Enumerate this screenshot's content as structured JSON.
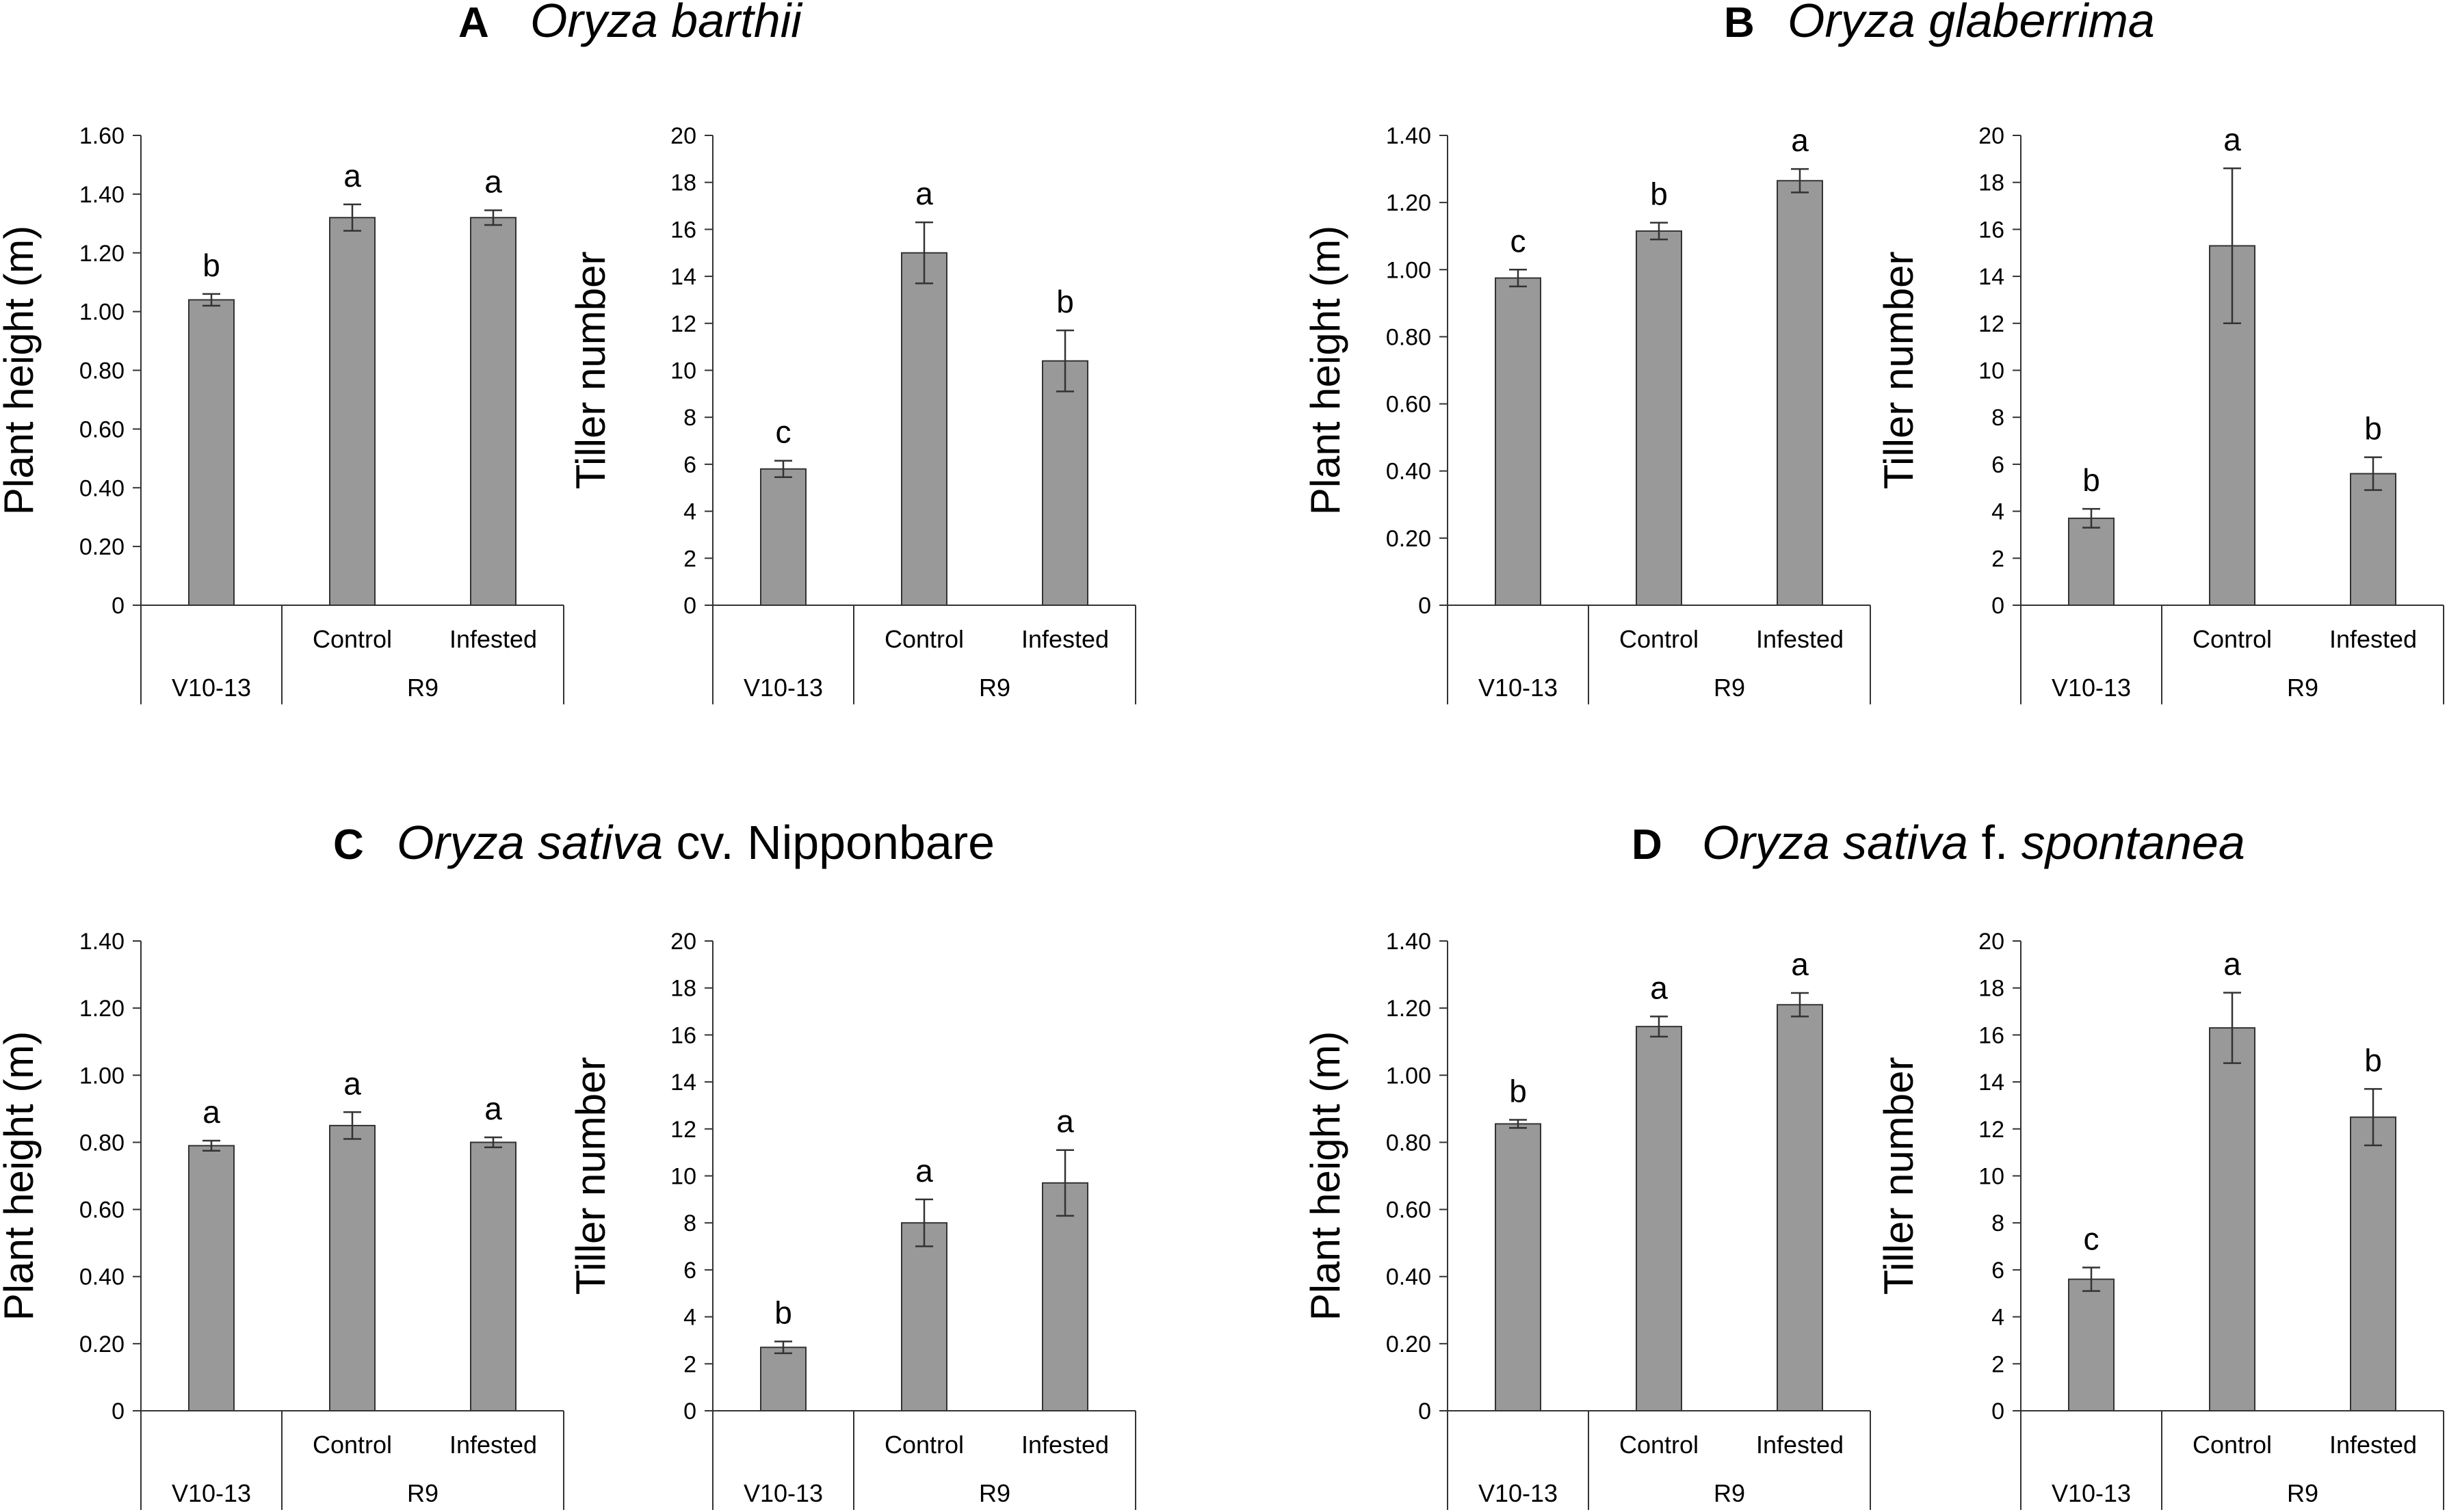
{
  "colors": {
    "bar": "#999999",
    "bar_edge": "#333333",
    "axis": "#333333"
  },
  "panels": [
    {
      "letter": "A",
      "title": [
        {
          "text": "Oryza barthii",
          "italic": true
        }
      ],
      "charts": [
        {
          "chart_key": "A_height"
        },
        {
          "chart_key": "A_tiller"
        }
      ]
    },
    {
      "letter": "B",
      "title": [
        {
          "text": "Oryza glaberrima",
          "italic": true
        }
      ],
      "charts": [
        {
          "chart_key": "B_height"
        },
        {
          "chart_key": "B_tiller"
        }
      ]
    },
    {
      "letter": "C",
      "title": [
        {
          "text": "Oryza sativa",
          "italic": true
        },
        {
          "text": " cv. Nipponbare",
          "italic": false
        }
      ],
      "charts": [
        {
          "chart_key": "C_height"
        },
        {
          "chart_key": "C_tiller"
        }
      ]
    },
    {
      "letter": "D",
      "title": [
        {
          "text": "Oryza sativa",
          "italic": true
        },
        {
          "text": " f. ",
          "italic": false
        },
        {
          "text": "spontanea",
          "italic": true
        }
      ],
      "charts": [
        {
          "chart_key": "D_height"
        },
        {
          "chart_key": "D_tiller"
        }
      ]
    }
  ],
  "chart_data": [
    {
      "key": "A_height",
      "type": "bar",
      "panel": "A",
      "ylabel": "Plant height (m)",
      "ylim": [
        0,
        1.6
      ],
      "yticks": [
        "0",
        "0.20",
        "0.40",
        "0.60",
        "0.80",
        "1.00",
        "1.20",
        "1.40",
        "1.60"
      ],
      "categories": [
        "",
        "Control",
        "Infested"
      ],
      "groups": [
        {
          "label": "V10-13",
          "span": 1
        },
        {
          "label": "R9",
          "span": 2
        }
      ],
      "values": [
        1.04,
        1.32,
        1.32
      ],
      "errors": [
        0.02,
        0.045,
        0.025
      ],
      "letters": [
        "b",
        "a",
        "a"
      ]
    },
    {
      "key": "A_tiller",
      "type": "bar",
      "panel": "A",
      "ylabel": "Tiller number",
      "ylim": [
        0,
        20
      ],
      "yticks": [
        "0",
        "2",
        "4",
        "6",
        "8",
        "10",
        "12",
        "14",
        "16",
        "18",
        "20"
      ],
      "categories": [
        "",
        "Control",
        "Infested"
      ],
      "groups": [
        {
          "label": "V10-13",
          "span": 1
        },
        {
          "label": "R9",
          "span": 2
        }
      ],
      "values": [
        5.8,
        15.0,
        10.4
      ],
      "errors": [
        0.35,
        1.3,
        1.3
      ],
      "letters": [
        "c",
        "a",
        "b"
      ]
    },
    {
      "key": "B_height",
      "type": "bar",
      "panel": "B",
      "ylabel": "Plant height (m)",
      "ylim": [
        0,
        1.4
      ],
      "yticks": [
        "0",
        "0.20",
        "0.40",
        "0.60",
        "0.80",
        "1.00",
        "1.20",
        "1.40"
      ],
      "categories": [
        "",
        "Control",
        "Infested"
      ],
      "groups": [
        {
          "label": "V10-13",
          "span": 1
        },
        {
          "label": "R9",
          "span": 2
        }
      ],
      "values": [
        0.975,
        1.115,
        1.265
      ],
      "errors": [
        0.025,
        0.025,
        0.035
      ],
      "letters": [
        "c",
        "b",
        "a"
      ]
    },
    {
      "key": "B_tiller",
      "type": "bar",
      "panel": "B",
      "ylabel": "Tiller number",
      "ylim": [
        0,
        20
      ],
      "yticks": [
        "0",
        "2",
        "4",
        "6",
        "8",
        "10",
        "12",
        "14",
        "16",
        "18",
        "20"
      ],
      "categories": [
        "",
        "Control",
        "Infested"
      ],
      "groups": [
        {
          "label": "V10-13",
          "span": 1
        },
        {
          "label": "R9",
          "span": 2
        }
      ],
      "values": [
        3.7,
        15.3,
        5.6
      ],
      "errors": [
        0.4,
        3.3,
        0.7
      ],
      "letters": [
        "b",
        "a",
        "b"
      ]
    },
    {
      "key": "C_height",
      "type": "bar",
      "panel": "C",
      "ylabel": "Plant height (m)",
      "ylim": [
        0,
        1.4
      ],
      "yticks": [
        "0",
        "0.20",
        "0.40",
        "0.60",
        "0.80",
        "1.00",
        "1.20",
        "1.40"
      ],
      "categories": [
        "",
        "Control",
        "Infested"
      ],
      "groups": [
        {
          "label": "V10-13",
          "span": 1
        },
        {
          "label": "R9",
          "span": 2
        }
      ],
      "values": [
        0.79,
        0.85,
        0.8
      ],
      "errors": [
        0.015,
        0.04,
        0.015
      ],
      "letters": [
        "a",
        "a",
        "a"
      ]
    },
    {
      "key": "C_tiller",
      "type": "bar",
      "panel": "C",
      "ylabel": "Tiller number",
      "ylim": [
        0,
        20
      ],
      "yticks": [
        "0",
        "2",
        "4",
        "6",
        "8",
        "10",
        "12",
        "14",
        "16",
        "18",
        "20"
      ],
      "categories": [
        "",
        "Control",
        "Infested"
      ],
      "groups": [
        {
          "label": "V10-13",
          "span": 1
        },
        {
          "label": "R9",
          "span": 2
        }
      ],
      "values": [
        2.7,
        8.0,
        9.7
      ],
      "errors": [
        0.25,
        1.0,
        1.4
      ],
      "letters": [
        "b",
        "a",
        "a"
      ]
    },
    {
      "key": "D_height",
      "type": "bar",
      "panel": "D",
      "ylabel": "Plant height (m)",
      "ylim": [
        0,
        1.4
      ],
      "yticks": [
        "0",
        "0.20",
        "0.40",
        "0.60",
        "0.80",
        "1.00",
        "1.20",
        "1.40"
      ],
      "categories": [
        "",
        "Control",
        "Infested"
      ],
      "groups": [
        {
          "label": "V10-13",
          "span": 1
        },
        {
          "label": "R9",
          "span": 2
        }
      ],
      "values": [
        0.855,
        1.145,
        1.21
      ],
      "errors": [
        0.012,
        0.03,
        0.035
      ],
      "letters": [
        "b",
        "a",
        "a"
      ]
    },
    {
      "key": "D_tiller",
      "type": "bar",
      "panel": "D",
      "ylabel": "Tiller number",
      "ylim": [
        0,
        20
      ],
      "yticks": [
        "0",
        "2",
        "4",
        "6",
        "8",
        "10",
        "12",
        "14",
        "16",
        "18",
        "20"
      ],
      "categories": [
        "",
        "Control",
        "Infested"
      ],
      "groups": [
        {
          "label": "V10-13",
          "span": 1
        },
        {
          "label": "R9",
          "span": 2
        }
      ],
      "values": [
        5.6,
        16.3,
        12.5
      ],
      "errors": [
        0.5,
        1.5,
        1.2
      ],
      "letters": [
        "c",
        "a",
        "b"
      ]
    }
  ]
}
